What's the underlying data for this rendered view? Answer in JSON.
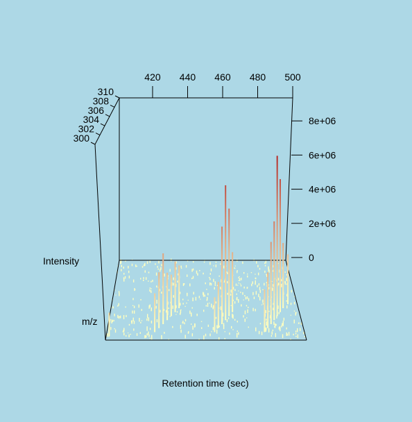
{
  "chart_data": {
    "type": "3d-perspective-spectrum",
    "title": "",
    "xlabel": "Retention time (sec)",
    "ylabel": "m/z",
    "zlabel": "Intensity",
    "x_ticks": [
      "420",
      "440",
      "460",
      "480",
      "500"
    ],
    "y_ticks": [
      "300",
      "302",
      "304",
      "306",
      "308",
      "310"
    ],
    "z_ticks": [
      "0",
      "2e+06",
      "4e+06",
      "6e+06",
      "8e+06"
    ],
    "xlim": [
      401,
      500
    ],
    "ylim": [
      300,
      310
    ],
    "zlim": [
      0,
      8800000
    ],
    "color_low": "#ffffc0",
    "color_high": "#b22222",
    "peaks": [
      {
        "rt": 402.5,
        "mz": 300.5,
        "intensity": 1200000
      },
      {
        "rt": 425,
        "mz": 301,
        "intensity": 2000000
      },
      {
        "rt": 427,
        "mz": 301.5,
        "intensity": 2900000
      },
      {
        "rt": 429,
        "mz": 302,
        "intensity": 3700000
      },
      {
        "rt": 431,
        "mz": 302.5,
        "intensity": 2500000
      },
      {
        "rt": 433,
        "mz": 303,
        "intensity": 2200000
      },
      {
        "rt": 435,
        "mz": 303.5,
        "intensity": 2700000
      },
      {
        "rt": 437,
        "mz": 304,
        "intensity": 2300000
      },
      {
        "rt": 455,
        "mz": 301,
        "intensity": 1800000
      },
      {
        "rt": 457,
        "mz": 301.5,
        "intensity": 2400000
      },
      {
        "rt": 459,
        "mz": 302,
        "intensity": 5100000
      },
      {
        "rt": 461,
        "mz": 302.5,
        "intensity": 7100000
      },
      {
        "rt": 463,
        "mz": 303,
        "intensity": 5700000
      },
      {
        "rt": 465,
        "mz": 303.5,
        "intensity": 3200000
      },
      {
        "rt": 480,
        "mz": 301,
        "intensity": 2200000
      },
      {
        "rt": 482,
        "mz": 301.5,
        "intensity": 2900000
      },
      {
        "rt": 484,
        "mz": 302,
        "intensity": 4300000
      },
      {
        "rt": 486,
        "mz": 302.5,
        "intensity": 5200000
      },
      {
        "rt": 488,
        "mz": 303,
        "intensity": 8500000
      },
      {
        "rt": 490,
        "mz": 303.5,
        "intensity": 7100000
      },
      {
        "rt": 492,
        "mz": 304,
        "intensity": 3500000
      },
      {
        "rt": 495,
        "mz": 304.5,
        "intensity": 2700000
      }
    ]
  }
}
